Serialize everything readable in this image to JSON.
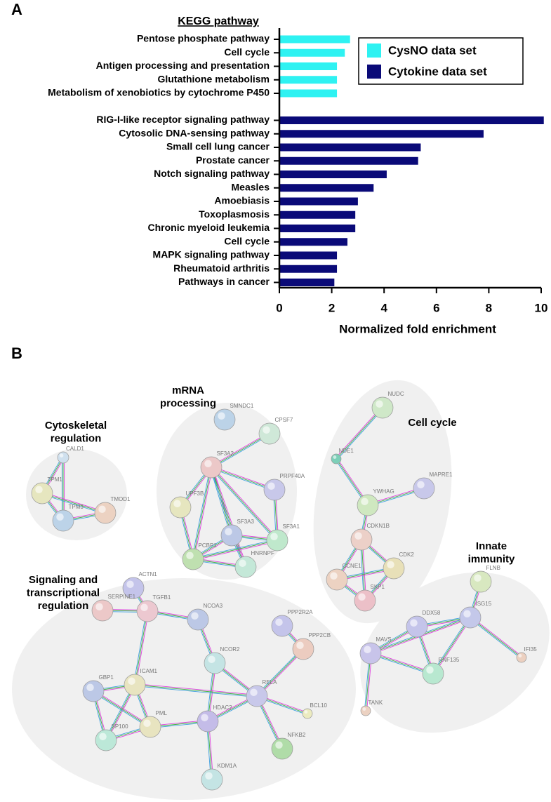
{
  "panels": [
    "A",
    "B"
  ],
  "chart_data": {
    "type": "hbar",
    "title": "KEGG pathway",
    "xlabel": "Normalized fold enrichment",
    "categories": [
      "Pentose phosphate pathway",
      "Cell cycle",
      "Antigen processing and presentation",
      "Glutathione metabolism",
      "Metabolism of xenobiotics by cytochrome P450",
      "RIG-I-like receptor signaling pathway",
      "Cytosolic DNA-sensing pathway",
      "Small cell lung cancer",
      "Prostate cancer",
      "Notch signaling pathway",
      "Measles",
      "Amoebiasis",
      "Toxoplasmosis",
      "Chronic myeloid leukemia",
      "Cell cycle",
      "MAPK signaling pathway",
      "Rheumatoid arthritis",
      "Pathways in cancer"
    ],
    "series": [
      {
        "name": "CysNO data set",
        "color": "#2ef2f2",
        "values": [
          2.7,
          2.5,
          2.2,
          2.2,
          2.2,
          null,
          null,
          null,
          null,
          null,
          null,
          null,
          null,
          null,
          null,
          null,
          null,
          null
        ]
      },
      {
        "name": "Cytokine data set",
        "color": "#0a0a78",
        "values": [
          null,
          null,
          null,
          null,
          null,
          10.1,
          7.8,
          5.4,
          5.3,
          4.1,
          3.6,
          3.0,
          2.9,
          2.9,
          2.6,
          2.2,
          2.2,
          2.1
        ]
      }
    ],
    "xlim": [
      0,
      10
    ],
    "xticks": [
      0,
      2,
      4,
      6,
      8,
      10
    ],
    "legend": "upper right"
  },
  "network": {
    "groups": [
      {
        "label": [
          "Cytoskeletal",
          "regulation"
        ]
      },
      {
        "label": [
          "mRNA",
          "processing"
        ]
      },
      {
        "label": [
          "Cell cycle"
        ]
      },
      {
        "label": [
          "Signaling and",
          "transcriptional",
          "regulation"
        ]
      },
      {
        "label": [
          "Innate",
          "immunity"
        ]
      }
    ],
    "nodes": [
      "CALD1",
      "TPM1",
      "TPM3",
      "TMOD1",
      "SMNDC1",
      "CPSF7",
      "SF3A2",
      "PRPF40A",
      "UPF3B",
      "SF3A3",
      "SF3A1",
      "PCBP1",
      "HNRNPF",
      "NUDC",
      "NDE1",
      "MAPRE1",
      "YWHAG",
      "CDKN1B",
      "CDK2",
      "CCNE1",
      "SKP1",
      "FLNB",
      "ISG15",
      "DDX58",
      "IFI35",
      "MAVS",
      "RNF135",
      "TANK",
      "ACTN1",
      "SERPINE1",
      "TGFB1",
      "NCOA3",
      "PPP2R2A",
      "PPP2CB",
      "NCOR2",
      "ICAM1",
      "RELA",
      "GBP1",
      "PML",
      "HDAC2",
      "BCL10",
      "SP100",
      "NFKB2",
      "KDM1A"
    ]
  }
}
